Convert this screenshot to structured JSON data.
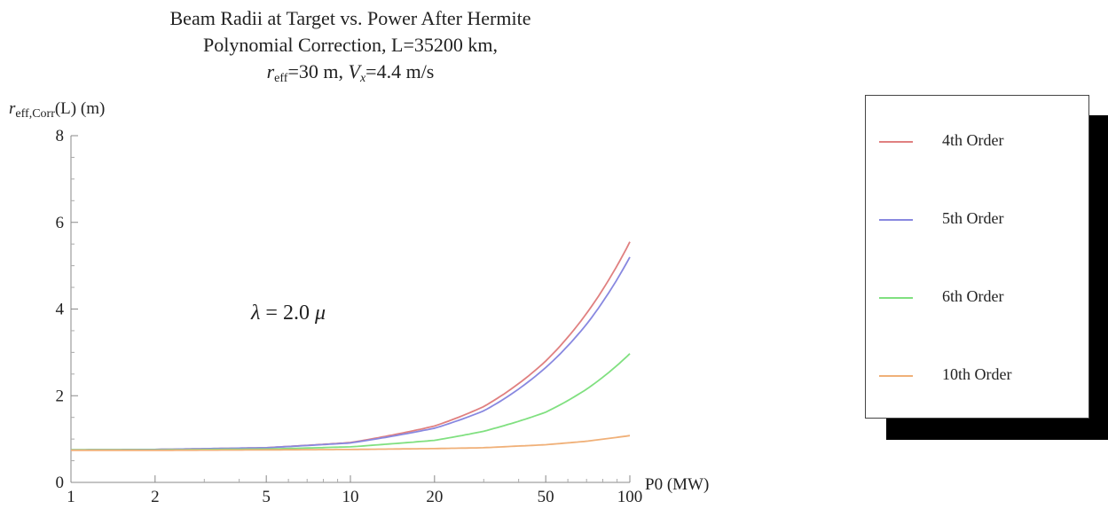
{
  "chart_data": {
    "type": "line",
    "title_lines": [
      "Beam Radii at Target vs. Power After Hermite",
      "Polynomial Correction, L=35200 km,"
    ],
    "title_line3": {
      "r_sym": "r",
      "r_sub": "eff",
      "r_val": "=30 m, ",
      "v_sym": "V",
      "v_sub": "x",
      "v_val": "=4.4 m/s"
    },
    "ylabel": {
      "sym": "r",
      "sub": "eff,Corr",
      "rest": "(L) (m)"
    },
    "xlabel": "P0 (MW)",
    "annotation": {
      "lhs": "λ",
      "eq": " = 2.0 ",
      "mu": "μ"
    },
    "x_scale": "log",
    "xlim": [
      1,
      100
    ],
    "ylim": [
      0,
      8
    ],
    "x_ticks": [
      1,
      2,
      5,
      10,
      20,
      50,
      100
    ],
    "x_tick_labels": [
      "1",
      "2",
      "5",
      "10",
      "20",
      "50",
      "100"
    ],
    "y_ticks": [
      0,
      2,
      4,
      6,
      8
    ],
    "y_tick_labels": [
      "0",
      "2",
      "4",
      "6",
      "8"
    ],
    "legend_position": "right",
    "series": [
      {
        "name": "4th Order",
        "color": "#e08080",
        "x": [
          1,
          2,
          5,
          10,
          20,
          30,
          50,
          70,
          100
        ],
        "y": [
          0.75,
          0.76,
          0.8,
          0.92,
          1.3,
          1.75,
          2.8,
          3.9,
          5.55
        ]
      },
      {
        "name": "5th Order",
        "color": "#8888e0",
        "x": [
          1,
          2,
          5,
          10,
          20,
          30,
          50,
          70,
          100
        ],
        "y": [
          0.75,
          0.76,
          0.8,
          0.91,
          1.25,
          1.65,
          2.65,
          3.65,
          5.2
        ]
      },
      {
        "name": "6th Order",
        "color": "#80e080",
        "x": [
          1,
          2,
          5,
          10,
          20,
          30,
          50,
          70,
          100
        ],
        "y": [
          0.75,
          0.75,
          0.77,
          0.82,
          0.97,
          1.18,
          1.62,
          2.15,
          2.97
        ]
      },
      {
        "name": "10th Order",
        "color": "#f0b078",
        "x": [
          1,
          2,
          5,
          10,
          20,
          30,
          50,
          70,
          100
        ],
        "y": [
          0.74,
          0.74,
          0.75,
          0.76,
          0.78,
          0.8,
          0.87,
          0.95,
          1.08
        ]
      }
    ]
  }
}
